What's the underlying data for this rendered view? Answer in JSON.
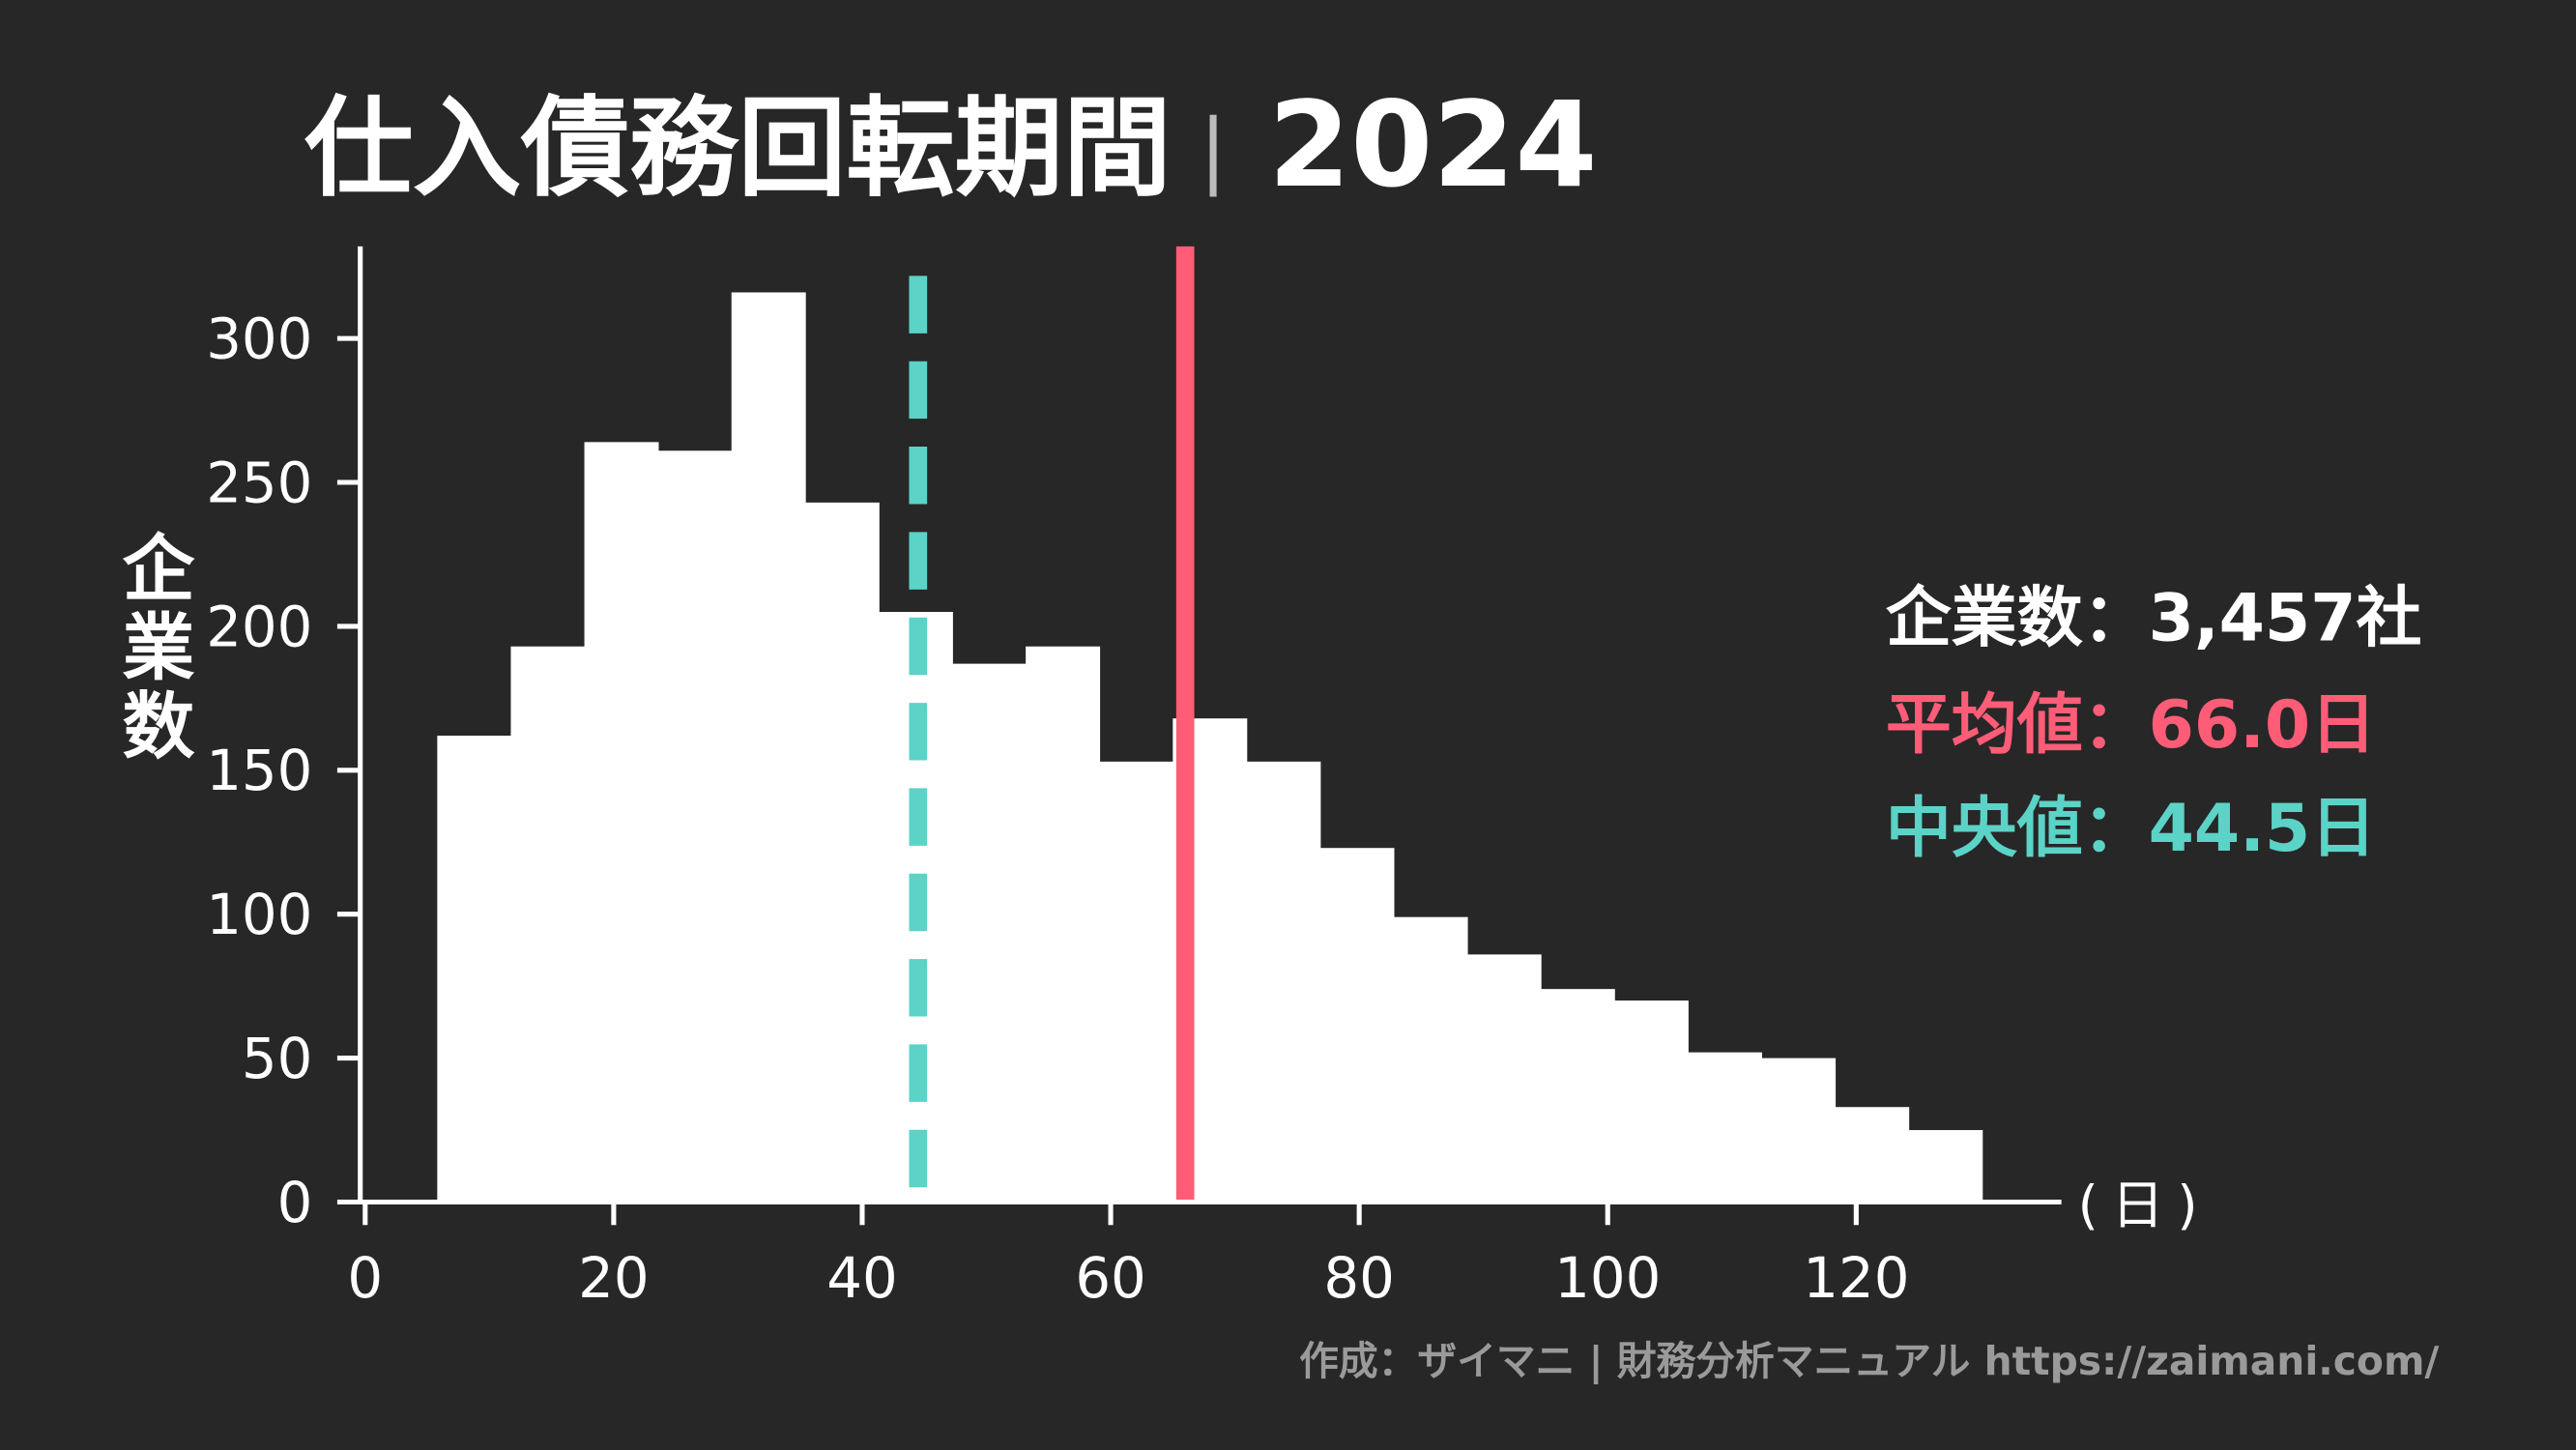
{
  "chart_data": {
    "type": "bar",
    "title": "仕入債務回転期間",
    "title_year": "2024",
    "title_separator": "|",
    "ylabel": "企業数",
    "xlabel": "(日)",
    "xlim": [
      0,
      135
    ],
    "ylim": [
      0,
      330
    ],
    "xticks": [
      0,
      20,
      40,
      60,
      80,
      100,
      120
    ],
    "yticks": [
      0,
      50,
      100,
      150,
      200,
      250,
      300
    ],
    "bin_start": 5.8,
    "bin_width": 5.92,
    "values": [
      162,
      193,
      264,
      261,
      316,
      243,
      205,
      187,
      193,
      153,
      168,
      153,
      123,
      99,
      86,
      74,
      70,
      52,
      50,
      33,
      25
    ],
    "grid": false,
    "mean": 66.0,
    "median": 44.5,
    "annotations": {
      "count": "企業数：3,457社",
      "mean": "平均値：66.0日",
      "median": "中央値：44.5日"
    },
    "credit": "作成：ザイマニ | 財務分析マニュアル https://zaimani.com/",
    "colors": {
      "background": "#272727",
      "bars": "#ffffff",
      "mean": "#ff5c77",
      "median": "#5bd3c7",
      "credit": "#9a9a9a"
    }
  }
}
